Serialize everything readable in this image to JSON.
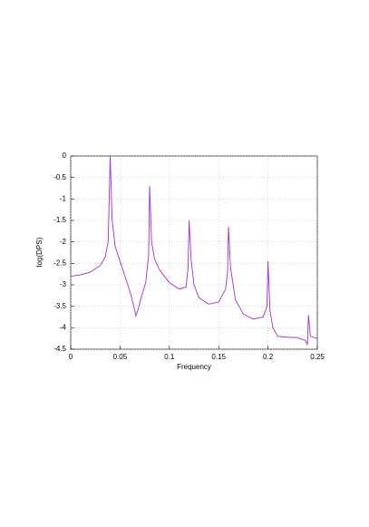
{
  "chart_data": {
    "type": "line",
    "x_label": "Frequency",
    "y_label": "log(DPS)",
    "x": [
      0,
      0.01,
      0.02,
      0.03,
      0.035,
      0.038,
      0.04,
      0.042,
      0.045,
      0.05,
      0.055,
      0.06,
      0.064,
      0.066,
      0.068,
      0.072,
      0.076,
      0.079,
      0.08,
      0.082,
      0.085,
      0.09,
      0.1,
      0.11,
      0.117,
      0.119,
      0.12,
      0.122,
      0.125,
      0.13,
      0.14,
      0.15,
      0.157,
      0.159,
      0.16,
      0.162,
      0.167,
      0.175,
      0.185,
      0.195,
      0.199,
      0.2,
      0.202,
      0.205,
      0.21,
      0.22,
      0.23,
      0.238,
      0.24,
      0.241,
      0.243,
      0.25
    ],
    "series": [
      {
        "color": "#a52ce0",
        "values": [
          -2.8,
          -2.77,
          -2.7,
          -2.55,
          -2.35,
          -2.0,
          0,
          -1.5,
          -2.1,
          -2.45,
          -2.8,
          -3.15,
          -3.5,
          -3.72,
          -3.6,
          -3.25,
          -2.95,
          -2.3,
          -0.7,
          -2.0,
          -2.4,
          -2.65,
          -2.95,
          -3.1,
          -3.05,
          -2.6,
          -1.5,
          -2.4,
          -3.0,
          -3.3,
          -3.45,
          -3.4,
          -3.1,
          -2.7,
          -1.65,
          -2.6,
          -3.35,
          -3.68,
          -3.8,
          -3.75,
          -3.5,
          -2.45,
          -3.6,
          -4.0,
          -4.2,
          -4.22,
          -4.23,
          -4.3,
          -4.4,
          -3.7,
          -4.2,
          -4.25
        ]
      }
    ],
    "xlim": [
      0,
      0.25
    ],
    "xticks": [
      0,
      0.05,
      0.1,
      0.15,
      0.2,
      0.25
    ],
    "ylim": [
      -4.5,
      0
    ],
    "yticks": [
      0,
      -0.5,
      -1,
      -1.5,
      -2,
      -2.5,
      -3,
      -3.5,
      -4,
      -4.5
    ],
    "grid": true
  }
}
